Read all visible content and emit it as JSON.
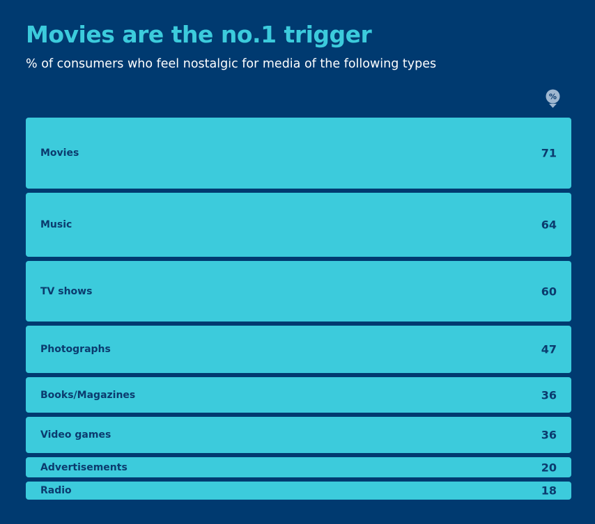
{
  "title": "Movies are the no.1 trigger",
  "subtitle": "% of consumers who feel nostalgic for media of the following types",
  "unit_badge": "%",
  "colors": {
    "background": "#003a70",
    "bar": "#3ccbdc",
    "title": "#3ccbdc",
    "bar_text": "#0b3b6e",
    "badge": "#9fb7d0"
  },
  "chart_data": {
    "type": "bar",
    "orientation": "horizontal",
    "categories": [
      "Movies",
      "Music",
      "TV shows",
      "Photographs",
      "Books/Magazines",
      "Video games",
      "Advertisements",
      "Radio"
    ],
    "values": [
      71,
      64,
      60,
      47,
      36,
      36,
      20,
      18
    ],
    "unit": "%"
  }
}
